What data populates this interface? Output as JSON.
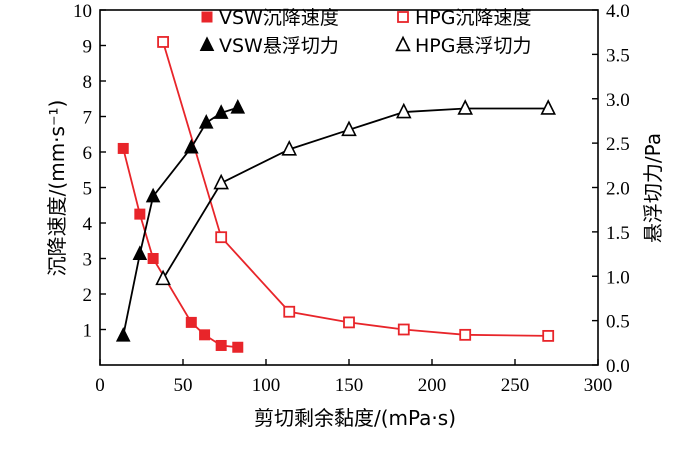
{
  "chart_data": {
    "type": "line",
    "xlabel": "剪切剩余黏度/(mPa·s)",
    "ylabel_left": "沉降速度/(mm·s⁻¹)",
    "ylabel_right": "悬浮切力/Pa",
    "xlim": [
      0,
      300
    ],
    "xticks": [
      0,
      50,
      100,
      150,
      200,
      250,
      300
    ],
    "ylim_left": [
      0,
      10
    ],
    "yticks_left": [
      1,
      2,
      3,
      4,
      5,
      6,
      7,
      8,
      9,
      10
    ],
    "ylim_right": [
      0,
      4
    ],
    "yticks_right": [
      "0.0",
      "0.5",
      "1.0",
      "1.5",
      "2.0",
      "2.5",
      "3.0",
      "3.5",
      "4.0"
    ],
    "grid": false,
    "legend_position": "top",
    "series": [
      {
        "name": "VSW沉降速度",
        "axis": "left",
        "marker": "filled-square",
        "color": "#e8252a",
        "x": [
          14,
          24,
          32,
          55,
          63,
          73,
          83
        ],
        "y": [
          6.1,
          4.25,
          3.0,
          1.2,
          0.85,
          0.55,
          0.5
        ]
      },
      {
        "name": "HPG沉降速度",
        "axis": "left",
        "marker": "open-square",
        "color": "#e8252a",
        "x": [
          38,
          73,
          114,
          150,
          183,
          220,
          270
        ],
        "y": [
          9.1,
          3.6,
          1.5,
          1.2,
          1.0,
          0.85,
          0.82
        ]
      },
      {
        "name": "VSW悬浮切力",
        "axis": "right",
        "marker": "filled-triangle",
        "color": "#000000",
        "x": [
          14,
          24,
          32,
          55,
          64,
          73,
          83
        ],
        "y": [
          0.33,
          1.25,
          1.9,
          2.45,
          2.73,
          2.84,
          2.9
        ]
      },
      {
        "name": "HPG悬浮切力",
        "axis": "right",
        "marker": "open-triangle",
        "color": "#000000",
        "x": [
          38,
          73,
          114,
          150,
          183,
          220,
          270
        ],
        "y": [
          0.97,
          2.05,
          2.43,
          2.65,
          2.85,
          2.89,
          2.89
        ]
      }
    ]
  }
}
